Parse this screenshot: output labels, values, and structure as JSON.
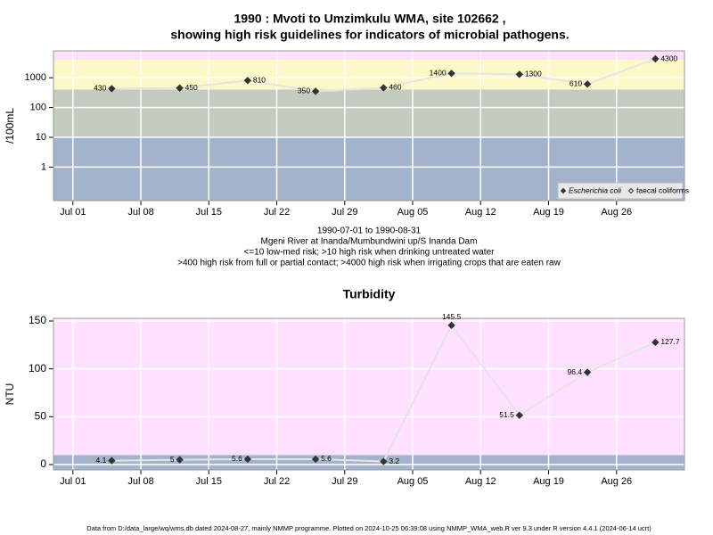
{
  "title": [
    "1990 : Mvoti to Umzimkulu WMA, site 102662 ,",
    "showing high risk guidelines for indicators of microbial pathogens."
  ],
  "notes": [
    "1990-07-01 to 1990-08-31",
    "Mgeni River at Inanda/Mumbundwini up/S Inanda Dam",
    "<=10 low-med risk; >10 high risk when drinking untreated water",
    ">400 high risk from full or partial contact; >4000 high risk when irrigating crops that are eaten raw"
  ],
  "footer": "Data from D:/data_large/wq/wms.db dated 2024-08-27, mainly NMMP programme. Plotted on 2024-10-25 06:39:08 using NMMP_WMA_web.R ver 9.3 under R version 4.4.1 (2024-06-14 ucrt)",
  "chart_data": [
    {
      "type": "line",
      "y_label": "/100mL",
      "log_scale": true,
      "grid": true,
      "legend": "bottom-right",
      "x": [
        "1990-07-05",
        "1990-07-12",
        "1990-07-19",
        "1990-07-26",
        "1990-08-02",
        "1990-08-09",
        "1990-08-16",
        "1990-08-23",
        "1990-08-30"
      ],
      "series": [
        {
          "name": "Escherichia coli",
          "marker": "filled-diamond",
          "color": "#333333",
          "values": [
            430,
            450,
            810,
            350,
            460,
            1400,
            1300,
            610,
            4300
          ]
        },
        {
          "name": "faecal coliforms",
          "marker": "open-diamond",
          "color": "#333333",
          "values": [
            null,
            null,
            null,
            null,
            null,
            null,
            null,
            null,
            null
          ]
        }
      ],
      "xlim": [
        "1990-06-29",
        "1990-09-02"
      ],
      "xticks": [
        {
          "value": "1990-07-01",
          "label": "Jul 01"
        },
        {
          "value": "1990-07-08",
          "label": "Jul 08"
        },
        {
          "value": "1990-07-15",
          "label": "Jul 15"
        },
        {
          "value": "1990-07-22",
          "label": "Jul 22"
        },
        {
          "value": "1990-07-29",
          "label": "Jul 29"
        },
        {
          "value": "1990-08-05",
          "label": "Aug 05"
        },
        {
          "value": "1990-08-12",
          "label": "Aug 12"
        },
        {
          "value": "1990-08-19",
          "label": "Aug 19"
        },
        {
          "value": "1990-08-26",
          "label": "Aug 26"
        }
      ],
      "ylim": [
        0.075,
        8000
      ],
      "yticks": [
        1,
        10,
        100,
        1000
      ],
      "bands": [
        {
          "to": 10,
          "color": "#a3b3cb"
        },
        {
          "from": 10,
          "to": 400,
          "color": "#c4ccbf"
        },
        {
          "from": 400,
          "to": 4000,
          "color": "#fdf8c8"
        },
        {
          "from": 4000,
          "color": "#fde0fd"
        }
      ]
    },
    {
      "type": "line",
      "title": "Turbidity",
      "y_label": "NTU",
      "log_scale": false,
      "grid": true,
      "x": [
        "1990-07-05",
        "1990-07-12",
        "1990-07-19",
        "1990-07-26",
        "1990-08-02",
        "1990-08-09",
        "1990-08-16",
        "1990-08-23",
        "1990-08-30"
      ],
      "series": [
        {
          "name": "Turbidity",
          "marker": "filled-diamond",
          "color": "#333333",
          "values": [
            4.1,
            5,
            5.6,
            5.6,
            3.2,
            145.5,
            51.5,
            96.4,
            127.7
          ]
        }
      ],
      "xlim": [
        "1990-06-29",
        "1990-09-02"
      ],
      "xticks": [
        {
          "value": "1990-07-01",
          "label": "Jul 01"
        },
        {
          "value": "1990-07-08",
          "label": "Jul 08"
        },
        {
          "value": "1990-07-15",
          "label": "Jul 15"
        },
        {
          "value": "1990-07-22",
          "label": "Jul 22"
        },
        {
          "value": "1990-07-29",
          "label": "Jul 29"
        },
        {
          "value": "1990-08-05",
          "label": "Aug 05"
        },
        {
          "value": "1990-08-12",
          "label": "Aug 12"
        },
        {
          "value": "1990-08-19",
          "label": "Aug 19"
        },
        {
          "value": "1990-08-26",
          "label": "Aug 26"
        }
      ],
      "ylim": [
        -5.6,
        152.8
      ],
      "yticks": [
        0,
        50,
        100,
        150
      ],
      "bands": [
        {
          "to": 10,
          "color": "#a3b3cb"
        },
        {
          "from": 10,
          "color": "#ffe0ff"
        }
      ]
    }
  ]
}
